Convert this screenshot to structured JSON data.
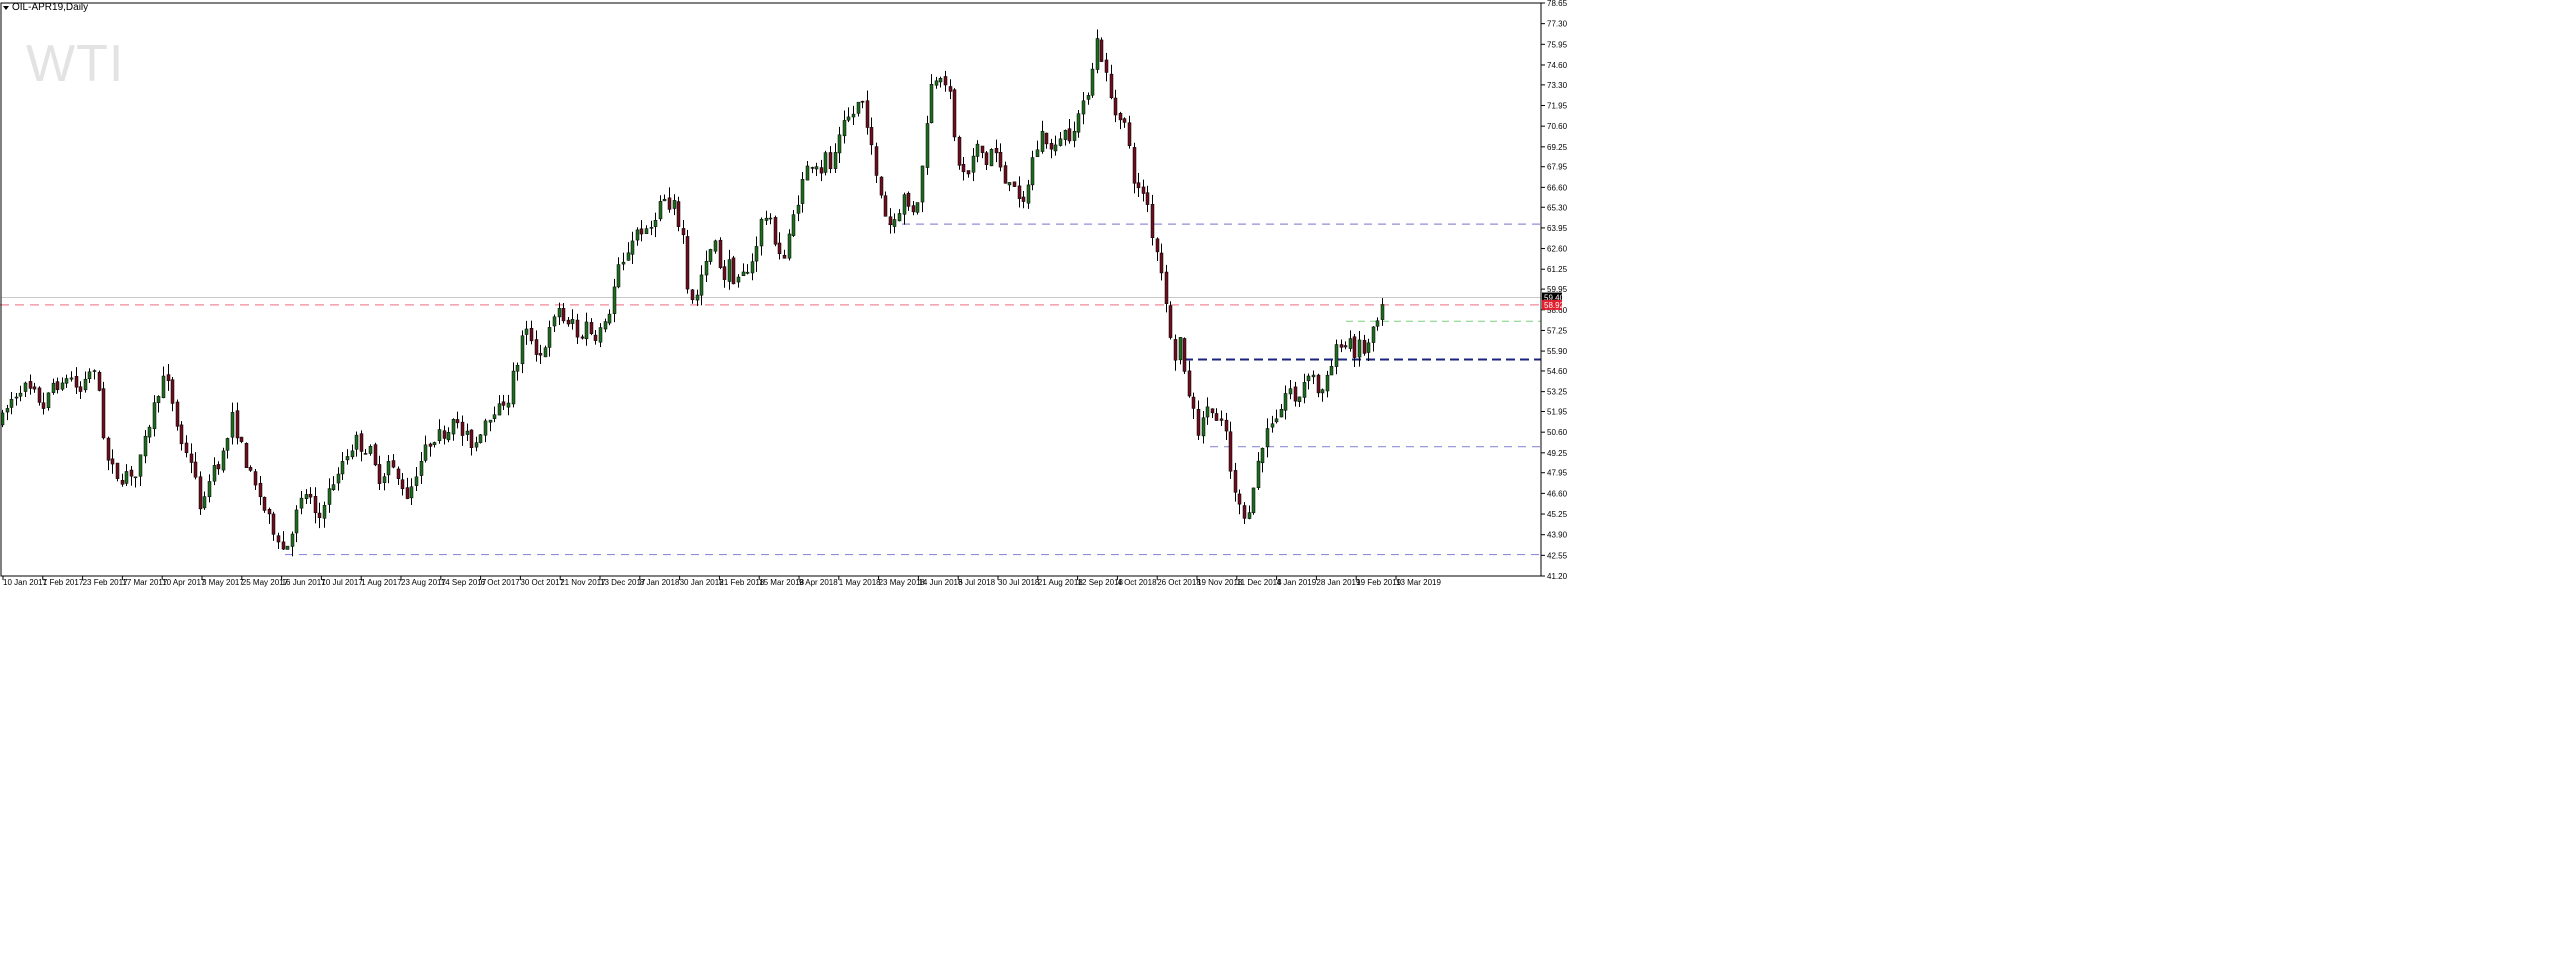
{
  "header": {
    "symbol_label": "OIL-APR19,Daily",
    "watermark": "WTI"
  },
  "colors": {
    "up_body": "#1f6b1f",
    "down_body": "#6b0e1e",
    "wick": "#000000",
    "resistance_pink": "#f08a9a",
    "support_navy": "#1a237e",
    "support_blue": "#8e8ed6",
    "support_green": "#7fd07f",
    "current_price_bg": "#000000",
    "alt_price_bg": "#e0202e"
  },
  "chart_data": {
    "type": "candlestick",
    "title": "",
    "symbol": "OIL-APR19",
    "timeframe": "Daily",
    "ylim": [
      41.2,
      78.65
    ],
    "grid": false,
    "y_ticks": [
      "78.65",
      "77.30",
      "75.95",
      "74.60",
      "73.30",
      "71.95",
      "70.60",
      "69.25",
      "67.95",
      "66.60",
      "65.30",
      "63.95",
      "62.60",
      "61.25",
      "59.95",
      "58.60",
      "57.25",
      "55.90",
      "54.60",
      "53.25",
      "51.95",
      "50.60",
      "49.25",
      "47.95",
      "46.60",
      "45.25",
      "43.90",
      "42.55",
      "41.20"
    ],
    "x_ticks": [
      "10 Jan 2017",
      "1 Feb 2017",
      "23 Feb 2017",
      "17 Mar 2017",
      "10 Apr 2017",
      "3 May 2017",
      "25 May 2017",
      "16 Jun 2017",
      "10 Jul 2017",
      "1 Aug 2017",
      "23 Aug 2017",
      "14 Sep 2017",
      "6 Oct 2017",
      "30 Oct 2017",
      "21 Nov 2017",
      "13 Dec 2017",
      "8 Jan 2018",
      "30 Jan 2018",
      "21 Feb 2018",
      "15 Mar 2018",
      "9 Apr 2018",
      "1 May 2018",
      "23 May 2018",
      "14 Jun 2018",
      "6 Jul 2018",
      "30 Jul 2018",
      "21 Aug 2018",
      "12 Sep 2018",
      "4 Oct 2018",
      "26 Oct 2018",
      "19 Nov 2018",
      "11 Dec 2018",
      "4 Jan 2019",
      "28 Jan 2019",
      "19 Feb 2019",
      "13 Mar 2019"
    ],
    "current_price_label": "59.40",
    "alt_price_label": "58.92",
    "price_path": [
      [
        0,
        51.2
      ],
      [
        10,
        52.6
      ],
      [
        22,
        53.7
      ],
      [
        35,
        53.0
      ],
      [
        45,
        52.2
      ],
      [
        55,
        54.3
      ],
      [
        60,
        53.1
      ],
      [
        68,
        54.6
      ],
      [
        73,
        53.8
      ],
      [
        80,
        53.2
      ],
      [
        88,
        54.8
      ],
      [
        95,
        54.2
      ],
      [
        100,
        53.1
      ],
      [
        105,
        49.0
      ],
      [
        112,
        48.2
      ],
      [
        120,
        47.5
      ],
      [
        128,
        48.2
      ],
      [
        135,
        47.6
      ],
      [
        142,
        49.2
      ],
      [
        150,
        51.4
      ],
      [
        156,
        52.8
      ],
      [
        162,
        54.2
      ],
      [
        168,
        53.6
      ],
      [
        174,
        52.1
      ],
      [
        180,
        49.9
      ],
      [
        186,
        49.4
      ],
      [
        192,
        48.6
      ],
      [
        198,
        46.2
      ],
      [
        203,
        45.4
      ],
      [
        208,
        47.5
      ],
      [
        213,
        48.4
      ],
      [
        218,
        48.6
      ],
      [
        223,
        49.2
      ],
      [
        228,
        50.4
      ],
      [
        233,
        51.8
      ],
      [
        238,
        50.2
      ],
      [
        243,
        49.3
      ],
      [
        248,
        48.1
      ],
      [
        254,
        47.1
      ],
      [
        260,
        46.4
      ],
      [
        266,
        45.2
      ],
      [
        272,
        44.4
      ],
      [
        278,
        43.8
      ],
      [
        283,
        42.9
      ],
      [
        288,
        43.4
      ],
      [
        293,
        44.6
      ],
      [
        298,
        45.6
      ],
      [
        303,
        46.3
      ],
      [
        308,
        46.9
      ],
      [
        313,
        45.2
      ],
      [
        318,
        44.6
      ],
      [
        323,
        46.1
      ],
      [
        328,
        46.6
      ],
      [
        333,
        47.4
      ],
      [
        338,
        47.6
      ],
      [
        343,
        48.9
      ],
      [
        348,
        49.3
      ],
      [
        353,
        49.8
      ],
      [
        358,
        50.3
      ],
      [
        363,
        49.2
      ],
      [
        368,
        49.8
      ],
      [
        373,
        48.6
      ],
      [
        378,
        47.6
      ],
      [
        383,
        47.9
      ],
      [
        388,
        48.7
      ],
      [
        393,
        48.1
      ],
      [
        398,
        47.4
      ],
      [
        403,
        47.1
      ],
      [
        408,
        46.3
      ],
      [
        413,
        47.5
      ],
      [
        418,
        48.4
      ],
      [
        423,
        49.1
      ],
      [
        428,
        49.8
      ],
      [
        433,
        50.3
      ],
      [
        438,
        50.4
      ],
      [
        443,
        50.6
      ],
      [
        448,
        50.7
      ],
      [
        453,
        51.9
      ],
      [
        458,
        50.8
      ],
      [
        463,
        50.4
      ],
      [
        468,
        50.2
      ],
      [
        473,
        49.7
      ],
      [
        478,
        50.2
      ],
      [
        483,
        51.4
      ],
      [
        488,
        51.6
      ],
      [
        493,
        52.2
      ],
      [
        498,
        52.0
      ],
      [
        503,
        52.6
      ],
      [
        508,
        52.8
      ],
      [
        513,
        54.4
      ],
      [
        518,
        55.3
      ],
      [
        523,
        57.2
      ],
      [
        528,
        57.0
      ],
      [
        533,
        56.6
      ],
      [
        538,
        55.4
      ],
      [
        543,
        56.0
      ],
      [
        548,
        57.0
      ],
      [
        553,
        57.6
      ],
      [
        558,
        58.9
      ],
      [
        563,
        58.0
      ],
      [
        568,
        57.4
      ],
      [
        573,
        58.0
      ],
      [
        578,
        56.4
      ],
      [
        583,
        57.3
      ],
      [
        588,
        57.9
      ],
      [
        593,
        56.6
      ],
      [
        598,
        57.4
      ],
      [
        603,
        57.2
      ],
      [
        608,
        58.2
      ],
      [
        613,
        59.8
      ],
      [
        618,
        61.2
      ],
      [
        623,
        61.5
      ],
      [
        628,
        62.6
      ],
      [
        633,
        63.4
      ],
      [
        638,
        63.9
      ],
      [
        643,
        63.8
      ],
      [
        648,
        63.3
      ],
      [
        653,
        64.6
      ],
      [
        658,
        65.2
      ],
      [
        663,
        66.1
      ],
      [
        668,
        64.9
      ],
      [
        673,
        65.5
      ],
      [
        678,
        64.3
      ],
      [
        683,
        63.4
      ],
      [
        686,
        60.3
      ],
      [
        690,
        59.8
      ],
      [
        695,
        58.9
      ],
      [
        700,
        60.6
      ],
      [
        705,
        61.3
      ],
      [
        710,
        62.4
      ],
      [
        715,
        62.8
      ],
      [
        720,
        61.5
      ],
      [
        725,
        60.6
      ],
      [
        730,
        61.9
      ],
      [
        735,
        60.1
      ],
      [
        740,
        61.2
      ],
      [
        745,
        60.6
      ],
      [
        750,
        61.4
      ],
      [
        755,
        62.6
      ],
      [
        760,
        64.2
      ],
      [
        765,
        64.8
      ],
      [
        770,
        64.2
      ],
      [
        775,
        63.2
      ],
      [
        780,
        62.3
      ],
      [
        785,
        61.9
      ],
      [
        790,
        63.8
      ],
      [
        795,
        65.2
      ],
      [
        800,
        66.4
      ],
      [
        805,
        67.6
      ],
      [
        810,
        68.2
      ],
      [
        815,
        68.4
      ],
      [
        820,
        67.6
      ],
      [
        825,
        68.6
      ],
      [
        830,
        67.9
      ],
      [
        835,
        68.6
      ],
      [
        840,
        69.8
      ],
      [
        845,
        70.8
      ],
      [
        850,
        71.2
      ],
      [
        855,
        71.6
      ],
      [
        860,
        72.5
      ],
      [
        865,
        71.6
      ],
      [
        870,
        69.8
      ],
      [
        873,
        68.2
      ],
      [
        877,
        66.8
      ],
      [
        881,
        66.1
      ],
      [
        885,
        64.9
      ],
      [
        890,
        64.2
      ],
      [
        895,
        64.6
      ],
      [
        900,
        65.4
      ],
      [
        905,
        66.2
      ],
      [
        910,
        64.8
      ],
      [
        915,
        65.5
      ],
      [
        920,
        66.3
      ],
      [
        925,
        70.2
      ],
      [
        930,
        73.1
      ],
      [
        935,
        73.8
      ],
      [
        940,
        74.2
      ],
      [
        945,
        73.6
      ],
      [
        950,
        72.4
      ],
      [
        953,
        70.2
      ],
      [
        957,
        68.6
      ],
      [
        962,
        67.6
      ],
      [
        967,
        67.2
      ],
      [
        972,
        68.4
      ],
      [
        977,
        69.2
      ],
      [
        982,
        68.8
      ],
      [
        987,
        68.1
      ],
      [
        992,
        69.3
      ],
      [
        997,
        68.6
      ],
      [
        1002,
        67.2
      ],
      [
        1007,
        66.8
      ],
      [
        1012,
        67.8
      ],
      [
        1017,
        65.6
      ],
      [
        1022,
        65.1
      ],
      [
        1027,
        66.6
      ],
      [
        1032,
        68.4
      ],
      [
        1037,
        69.2
      ],
      [
        1042,
        70.2
      ],
      [
        1047,
        69.6
      ],
      [
        1052,
        68.8
      ],
      [
        1057,
        69.2
      ],
      [
        1062,
        70.6
      ],
      [
        1067,
        69.8
      ],
      [
        1072,
        70.4
      ],
      [
        1077,
        71.2
      ],
      [
        1082,
        71.6
      ],
      [
        1087,
        72.8
      ],
      [
        1092,
        74.6
      ],
      [
        1097,
        76.3
      ],
      [
        1100,
        75.4
      ],
      [
        1104,
        74.6
      ],
      [
        1108,
        73.2
      ],
      [
        1112,
        71.9
      ],
      [
        1117,
        71.2
      ],
      [
        1122,
        71.6
      ],
      [
        1127,
        69.8
      ],
      [
        1131,
        68.4
      ],
      [
        1135,
        66.6
      ],
      [
        1139,
        66.2
      ],
      [
        1144,
        66.4
      ],
      [
        1148,
        65.3
      ],
      [
        1152,
        63.6
      ],
      [
        1157,
        62.4
      ],
      [
        1161,
        61.2
      ],
      [
        1165,
        59.8
      ],
      [
        1169,
        57.6
      ],
      [
        1172,
        55.4
      ],
      [
        1176,
        55.6
      ],
      [
        1180,
        56.8
      ],
      [
        1184,
        54.2
      ],
      [
        1188,
        53.4
      ],
      [
        1192,
        52.2
      ],
      [
        1196,
        51.2
      ],
      [
        1200,
        50.4
      ],
      [
        1204,
        51.6
      ],
      [
        1208,
        52.6
      ],
      [
        1212,
        51.8
      ],
      [
        1216,
        51.2
      ],
      [
        1220,
        50.8
      ],
      [
        1224,
        51.6
      ],
      [
        1228,
        49.2
      ],
      [
        1232,
        46.8
      ],
      [
        1236,
        46.2
      ],
      [
        1240,
        45.8
      ],
      [
        1243,
        44.6
      ],
      [
        1247,
        45.2
      ],
      [
        1251,
        46.6
      ],
      [
        1255,
        47.9
      ],
      [
        1259,
        48.8
      ],
      [
        1263,
        49.8
      ],
      [
        1267,
        50.8
      ],
      [
        1271,
        51.4
      ],
      [
        1275,
        51.6
      ],
      [
        1280,
        52.0
      ],
      [
        1285,
        53.1
      ],
      [
        1290,
        53.4
      ],
      [
        1295,
        52.4
      ],
      [
        1300,
        53.2
      ],
      [
        1305,
        54.2
      ],
      [
        1310,
        54.8
      ],
      [
        1315,
        53.9
      ],
      [
        1320,
        52.8
      ],
      [
        1325,
        53.6
      ],
      [
        1330,
        54.6
      ],
      [
        1335,
        55.8
      ],
      [
        1340,
        56.6
      ],
      [
        1345,
        56.2
      ],
      [
        1350,
        56.8
      ],
      [
        1355,
        55.6
      ],
      [
        1360,
        56.4
      ],
      [
        1365,
        55.8
      ],
      [
        1370,
        56.6
      ],
      [
        1375,
        57.4
      ],
      [
        1380,
        58.2
      ],
      [
        1384,
        58.8
      ],
      [
        1386,
        59.4
      ]
    ],
    "levels": [
      {
        "price": 64.2,
        "x_from": 888,
        "color": "support_blue",
        "width": 1.2,
        "dash": "8,6"
      },
      {
        "price": 58.92,
        "x_from": 0,
        "color": "resistance_pink",
        "width": 1.2,
        "dash": "9,6"
      },
      {
        "price": 57.85,
        "x_from": 1346,
        "color": "support_green",
        "width": 1.0,
        "dash": "7,5"
      },
      {
        "price": 55.35,
        "x_from": 1184,
        "color": "support_navy",
        "width": 2.0,
        "dash": "9,5"
      },
      {
        "price": 49.65,
        "x_from": 1210,
        "color": "support_blue",
        "width": 1.2,
        "dash": "8,6"
      },
      {
        "price": 42.6,
        "x_from": 285,
        "color": "support_blue",
        "width": 1.2,
        "dash": "8,6"
      }
    ],
    "price_line": 59.4
  }
}
